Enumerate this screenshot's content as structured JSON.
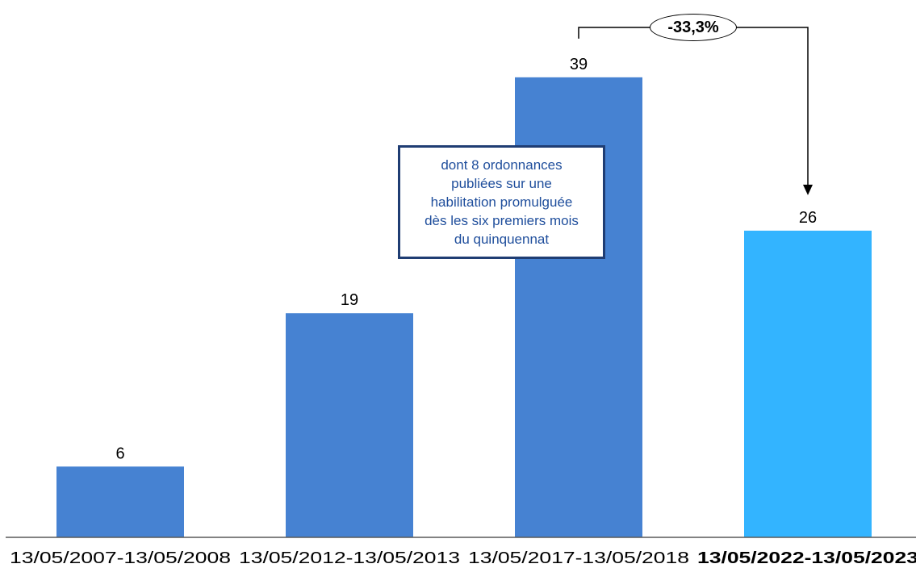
{
  "chart_data": {
    "type": "bar",
    "categories": [
      "13/05/2007-13/05/2008",
      "13/05/2012-13/05/2013",
      "13/05/2017-13/05/2018",
      "13/05/2022-13/05/2023"
    ],
    "values": [
      6,
      19,
      39,
      26
    ],
    "data_labels": [
      "6",
      "19",
      "39",
      "26"
    ],
    "highlighted_category_index": 3,
    "title": "",
    "xlabel": "",
    "ylabel": "",
    "ylim": [
      0,
      45
    ],
    "grid": false,
    "legend": "none",
    "colors": {
      "default_bar": "#4682d2",
      "highlight_bar": "#33b4ff",
      "axis": "#595959",
      "text": "#000000"
    },
    "annotations": {
      "change_label": "-33,3%",
      "change_from_index": 2,
      "change_to_index": 3,
      "callout_text": "dont 8 ordonnances\npubliées sur une\nhabilitation promulguée\ndès les six premiers mois\ndu quinquennat",
      "callout_bar_index": 2,
      "callout_text_color": "#1f4e9c",
      "callout_border_color": "#1f3d73"
    }
  }
}
